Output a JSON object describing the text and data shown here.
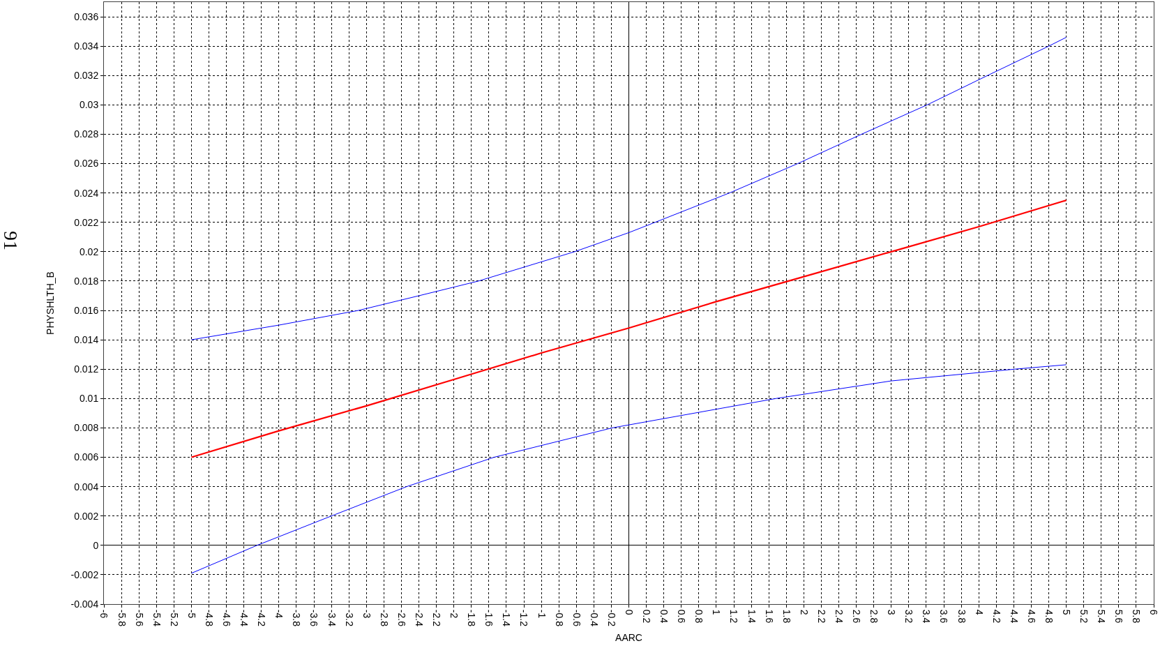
{
  "chart_data": {
    "type": "line",
    "xlabel": "AARC",
    "ylabel": "PHYSHLTH_B",
    "annotations": [
      "91"
    ],
    "xlim": [
      -6,
      6
    ],
    "xticks": [
      -6,
      -5.8,
      -5.6,
      -5.4,
      -5.2,
      -5,
      -4.8,
      -4.6,
      -4.4,
      -4.2,
      -4,
      -3.8,
      -3.6,
      -3.4,
      -3.2,
      -3,
      -2.8,
      -2.6,
      -2.4,
      -2.2,
      -2,
      -1.8,
      -1.6,
      -1.4,
      -1.2,
      -1,
      -0.8,
      -0.6,
      -0.4,
      -0.2,
      0,
      0.2,
      0.4,
      0.6,
      0.8,
      1,
      1.2,
      1.4,
      1.6,
      1.8,
      2,
      2.2,
      2.4,
      2.6,
      2.8,
      3,
      3.2,
      3.4,
      3.6,
      3.8,
      4,
      4.2,
      4.4,
      4.6,
      4.8,
      5,
      5.2,
      5.4,
      5.6,
      5.8,
      6
    ],
    "ylim": [
      -0.004,
      0.037
    ],
    "yticks": [
      -0.004,
      -0.002,
      0,
      0.002,
      0.004,
      0.006,
      0.008,
      0.01,
      0.012,
      0.014,
      0.016,
      0.018,
      0.02,
      0.022,
      0.024,
      0.026,
      0.028,
      0.03,
      0.032,
      0.034,
      0.036
    ],
    "grid": true,
    "marker": "none",
    "line_style": "solid",
    "series": [
      {
        "color": "#0000ff",
        "x": [
          -5,
          -4,
          -3.09,
          -2.4,
          -1.72,
          -0.62,
          0,
          0.3,
          1.15,
          1.93,
          2.66,
          3.41,
          4.1,
          4.8,
          5
        ],
        "values": [
          0.014,
          0.015,
          0.016,
          0.017,
          0.018,
          0.02,
          0.0213,
          0.022,
          0.024,
          0.026,
          0.028,
          0.03,
          0.032,
          0.034,
          0.0346
        ]
      },
      {
        "color": "#ff0000",
        "x": [
          -5,
          -4,
          -3,
          -2,
          -1,
          0,
          1,
          2,
          3,
          4,
          5
        ],
        "values": [
          0.006,
          0.0078,
          0.0095,
          0.0113,
          0.0131,
          0.0148,
          0.0166,
          0.0183,
          0.02,
          0.0217,
          0.0235
        ]
      },
      {
        "color": "#0000ff",
        "x": [
          -5,
          -4.25,
          -3.4,
          -2.54,
          -1.54,
          -0.19,
          1.68,
          3,
          4.41,
          5
        ],
        "values": [
          -0.0019,
          0,
          0.002,
          0.004,
          0.006,
          0.008,
          0.01,
          0.0112,
          0.012,
          0.0123
        ]
      }
    ]
  }
}
